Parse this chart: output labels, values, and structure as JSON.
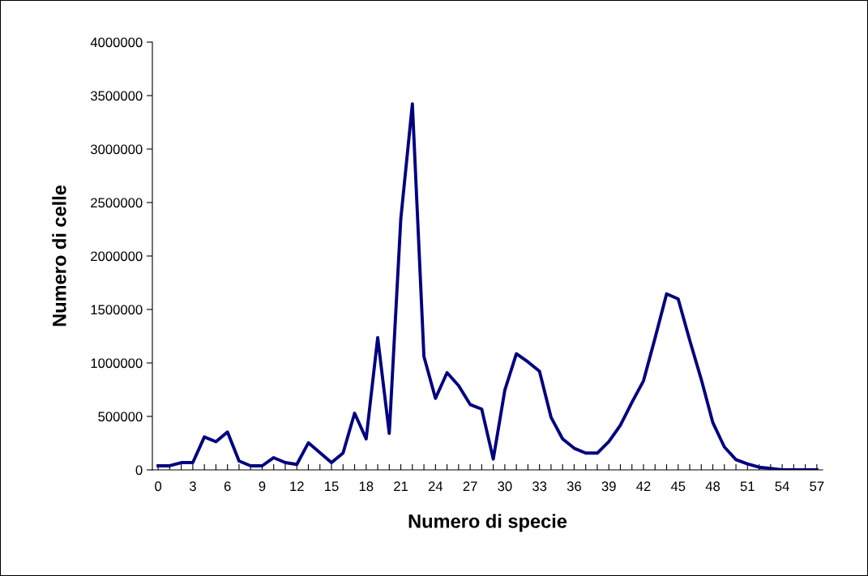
{
  "chart_data": {
    "type": "line",
    "xlabel": "Numero di specie",
    "ylabel": "Numero di celle",
    "categories": [
      "0",
      null,
      null,
      "3",
      null,
      null,
      "6",
      null,
      null,
      "9",
      null,
      null,
      "12",
      null,
      null,
      "15",
      null,
      null,
      "18",
      null,
      null,
      "21",
      null,
      null,
      "24",
      null,
      null,
      "27",
      null,
      null,
      "30",
      null,
      null,
      "33",
      null,
      null,
      "36",
      null,
      null,
      "39",
      null,
      null,
      "42",
      null,
      null,
      "45",
      null,
      null,
      "48",
      null,
      null,
      "51",
      null,
      null,
      "54",
      null,
      null,
      "57"
    ],
    "series": [
      {
        "color": "#000080",
        "values": [
          38000,
          38000,
          68000,
          68000,
          308000,
          263000,
          354000,
          83000,
          38000,
          38000,
          114000,
          68000,
          51000,
          253000,
          161000,
          68000,
          157000,
          530000,
          290000,
          1237000,
          341000,
          2349000,
          3422000,
          1061000,
          669000,
          909000,
          788000,
          611000,
          568000,
          101000,
          745000,
          1086000,
          1010000,
          922000,
          492000,
          290000,
          202000,
          157000,
          157000,
          265000,
          417000,
          631000,
          833000,
          1232000,
          1646000,
          1598000,
          1212000,
          846000,
          442000,
          214000,
          96000,
          56000,
          25000,
          13000,
          0,
          0,
          0,
          0
        ]
      }
    ],
    "ylim": [
      0,
      4000000
    ],
    "yticks": [
      0,
      500000,
      1000000,
      1500000,
      2000000,
      2500000,
      3000000,
      3500000,
      4000000
    ],
    "grid": false,
    "legend": false,
    "marker": "none",
    "line_style": "solid"
  }
}
